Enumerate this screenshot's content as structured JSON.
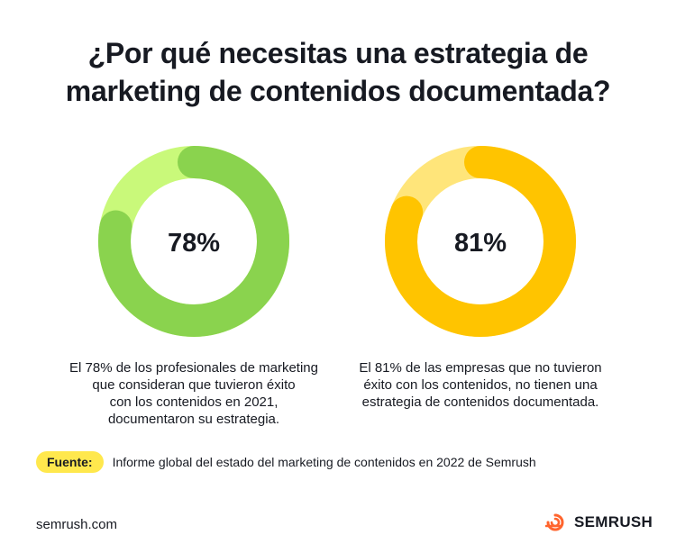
{
  "title": {
    "line1": "¿Por qué necesitas una estrategia de",
    "line2": "marketing de contenidos documentada?"
  },
  "chart_data": [
    {
      "type": "pie",
      "values": [
        78,
        22
      ],
      "label": "78%",
      "description": [
        "El 78% de los profesionales de marketing",
        "que consideran que tuvieron éxito",
        "con los contenidos en 2021,",
        "documentaron su estrategia."
      ],
      "colors": {
        "value": "#8ad34e",
        "rest": "#c9f97a"
      }
    },
    {
      "type": "pie",
      "values": [
        81,
        19
      ],
      "label": "81%",
      "description": [
        "El 81% de las empresas que no tuvieron",
        "éxito con los contenidos, no tienen una",
        "estrategia de contenidos documentada."
      ],
      "colors": {
        "value": "#ffc400",
        "rest": "#ffe57a"
      }
    }
  ],
  "source": {
    "badge": "Fuente:",
    "text": "Informe global del estado del marketing de contenidos en 2022 de Semrush"
  },
  "footer": {
    "site": "semrush.com",
    "brand": "SEMRUSH",
    "brand_color": "#ff642d",
    "brand_icon": "semrush-flame-icon"
  }
}
